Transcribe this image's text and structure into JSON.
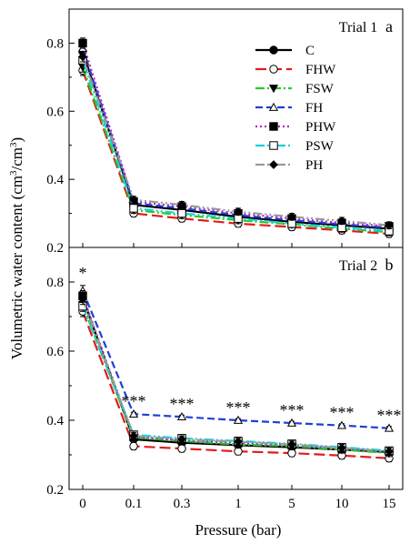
{
  "figure": {
    "ylabel_main": "Volumetric water content (cm",
    "ylabel_sup1": "3",
    "ylabel_mid": "/cm",
    "ylabel_sup2": "3",
    "ylabel_end": ")",
    "xlabel": "Pressure (bar)"
  },
  "chart_data": [
    {
      "type": "line",
      "title": "Trial 1",
      "panel_letter": "a",
      "categories": [
        "0",
        "0.1",
        "0.3",
        "1",
        "5",
        "10",
        "15"
      ],
      "ylim": [
        0.2,
        0.9
      ],
      "yticks": [
        "0.2",
        "0.4",
        "0.6",
        "0.8"
      ],
      "legend_position": "top-right",
      "series": [
        {
          "name": "C",
          "color": "#000000",
          "dash": "",
          "marker": "circle-filled",
          "values": [
            0.775,
            0.325,
            0.31,
            0.29,
            0.275,
            0.265,
            0.255
          ],
          "errors": [
            0.02,
            0.012,
            0.012,
            0.012,
            0.012,
            0.012,
            0.015
          ]
        },
        {
          "name": "FHW",
          "color": "#e41a1c",
          "dash": "12,5",
          "marker": "circle-open",
          "values": [
            0.72,
            0.3,
            0.285,
            0.27,
            0.26,
            0.25,
            0.24
          ],
          "errors": [
            0.015,
            0.01,
            0.01,
            0.01,
            0.01,
            0.01,
            0.01
          ]
        },
        {
          "name": "FSW",
          "color": "#22cc22",
          "dash": "10,3,2,3",
          "marker": "triangle-down-filled",
          "values": [
            0.73,
            0.31,
            0.295,
            0.28,
            0.268,
            0.255,
            0.245
          ],
          "errors": [
            0.015,
            0.01,
            0.01,
            0.01,
            0.01,
            0.01,
            0.01
          ]
        },
        {
          "name": "FH",
          "color": "#1f3fd6",
          "dash": "8,4",
          "marker": "triangle-up-open",
          "values": [
            0.785,
            0.33,
            0.315,
            0.295,
            0.28,
            0.268,
            0.258
          ],
          "errors": [
            0.015,
            0.01,
            0.01,
            0.01,
            0.01,
            0.01,
            0.01
          ]
        },
        {
          "name": "PHW",
          "color": "#b027c0",
          "dash": "2,3",
          "marker": "square-filled",
          "values": [
            0.8,
            0.335,
            0.32,
            0.3,
            0.285,
            0.272,
            0.262
          ],
          "errors": [
            0.015,
            0.01,
            0.01,
            0.01,
            0.01,
            0.01,
            0.01
          ]
        },
        {
          "name": "PSW",
          "color": "#1ad0d8",
          "dash": "10,3,2,3,2,3",
          "marker": "square-open",
          "values": [
            0.75,
            0.315,
            0.3,
            0.285,
            0.27,
            0.258,
            0.248
          ],
          "errors": [
            0.015,
            0.01,
            0.01,
            0.01,
            0.01,
            0.01,
            0.01
          ]
        },
        {
          "name": "PH",
          "color": "#9a9a9a",
          "dash": "10,3,2,3,2,3",
          "marker": "diamond-filled",
          "values": [
            0.76,
            0.34,
            0.325,
            0.305,
            0.29,
            0.278,
            0.265
          ],
          "errors": [
            0.015,
            0.01,
            0.01,
            0.01,
            0.01,
            0.01,
            0.01
          ]
        }
      ],
      "annotations": []
    },
    {
      "type": "line",
      "title": "Trial 2",
      "panel_letter": "b",
      "categories": [
        "0",
        "0.1",
        "0.3",
        "1",
        "5",
        "10",
        "15"
      ],
      "ylim": [
        0.2,
        0.9
      ],
      "yticks": [
        "0.2",
        "0.4",
        "0.6",
        "0.8"
      ],
      "series": [
        {
          "name": "C",
          "color": "#000000",
          "dash": "",
          "marker": "circle-filled",
          "values": [
            0.755,
            0.345,
            0.335,
            0.328,
            0.322,
            0.315,
            0.308
          ],
          "errors": [
            0.02,
            0.012,
            0.012,
            0.012,
            0.012,
            0.01,
            0.012
          ]
        },
        {
          "name": "FHW",
          "color": "#e41a1c",
          "dash": "12,5",
          "marker": "circle-open",
          "values": [
            0.715,
            0.325,
            0.318,
            0.31,
            0.305,
            0.298,
            0.29
          ],
          "errors": [
            0.015,
            0.01,
            0.01,
            0.01,
            0.01,
            0.01,
            0.01
          ]
        },
        {
          "name": "FSW",
          "color": "#22cc22",
          "dash": "10,3,2,3",
          "marker": "triangle-down-filled",
          "values": [
            0.735,
            0.35,
            0.34,
            0.33,
            0.325,
            0.315,
            0.305
          ],
          "errors": [
            0.015,
            0.01,
            0.01,
            0.01,
            0.01,
            0.01,
            0.01
          ]
        },
        {
          "name": "FH",
          "color": "#1f3fd6",
          "dash": "8,4",
          "marker": "triangle-up-open",
          "values": [
            0.775,
            0.418,
            0.41,
            0.4,
            0.392,
            0.385,
            0.377
          ],
          "errors": [
            0.015,
            0.005,
            0.005,
            0.005,
            0.005,
            0.005,
            0.005
          ]
        },
        {
          "name": "PHW",
          "color": "#b027c0",
          "dash": "2,3",
          "marker": "square-filled",
          "values": [
            0.76,
            0.352,
            0.342,
            0.335,
            0.328,
            0.318,
            0.31
          ],
          "errors": [
            0.015,
            0.01,
            0.01,
            0.01,
            0.01,
            0.01,
            0.01
          ]
        },
        {
          "name": "PSW",
          "color": "#1ad0d8",
          "dash": "10,3,2,3,2,3",
          "marker": "square-open",
          "values": [
            0.73,
            0.358,
            0.348,
            0.34,
            0.332,
            0.322,
            0.312
          ],
          "errors": [
            0.015,
            0.01,
            0.01,
            0.01,
            0.01,
            0.01,
            0.01
          ]
        },
        {
          "name": "PH",
          "color": "#9a9a9a",
          "dash": "10,3,2,3,2,3",
          "marker": "diamond-filled",
          "values": [
            0.75,
            0.355,
            0.345,
            0.338,
            0.33,
            0.32,
            0.31
          ],
          "errors": [
            0.015,
            0.01,
            0.01,
            0.01,
            0.01,
            0.01,
            0.01
          ]
        }
      ],
      "annotations": [
        {
          "category": "0",
          "text": "*"
        },
        {
          "category": "0.1",
          "text": "***"
        },
        {
          "category": "0.3",
          "text": "***"
        },
        {
          "category": "1",
          "text": "***"
        },
        {
          "category": "5",
          "text": "***"
        },
        {
          "category": "10",
          "text": "***"
        },
        {
          "category": "15",
          "text": "***"
        }
      ]
    }
  ]
}
